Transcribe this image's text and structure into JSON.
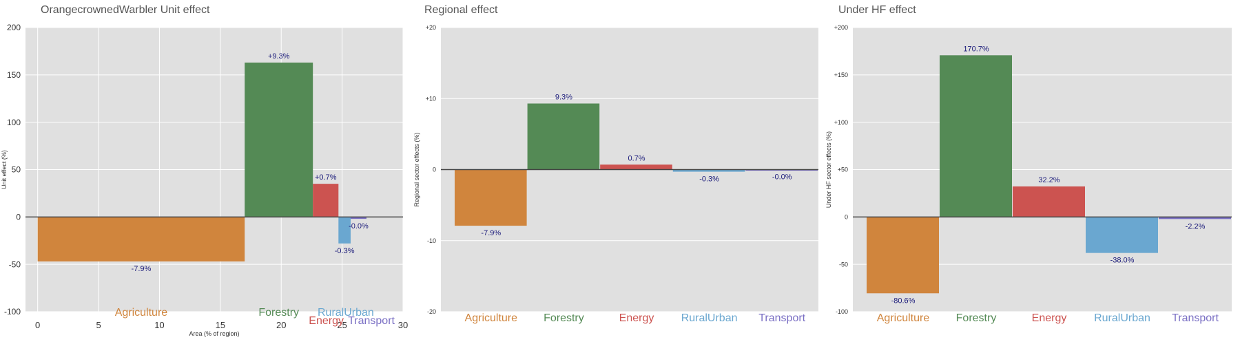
{
  "colors": {
    "panel_bg": "#e0e0e0",
    "grid": "#ffffff",
    "title": "#555555",
    "axis_text": "#333333",
    "value_label": "#1a1a7a",
    "zero_line": "#444444",
    "sectors": {
      "Agriculture": "#d0853d",
      "Forestry": "#548a55",
      "Energy": "#cc5350",
      "RuralUrban": "#6aa7d0",
      "Transport": "#7a6fc4"
    }
  },
  "chart_data": [
    {
      "type": "bar",
      "variant": "variable-width",
      "title": "OrangecrownedWarbler Unit effect",
      "xlabel": "Area (% of region)",
      "ylabel": "Unit effect (%)",
      "ylim": [
        -100,
        200
      ],
      "yticks": [
        -100,
        -50,
        0,
        50,
        100,
        150,
        200
      ],
      "ytick_labels": [
        "-100",
        "-50",
        "0",
        "50",
        "100",
        "150",
        "200"
      ],
      "xlim": [
        -1,
        30
      ],
      "xticks": [
        0,
        5,
        10,
        15,
        20,
        25,
        30
      ],
      "xtick_labels": [
        "0",
        "5",
        "10",
        "15",
        "20",
        "25",
        "30"
      ],
      "grid": true,
      "bars": [
        {
          "category": "Agriculture",
          "x_start": 0,
          "x_end": 17,
          "value": -47,
          "label": "-7.9%"
        },
        {
          "category": "Forestry",
          "x_start": 17,
          "x_end": 22.6,
          "value": 163,
          "label": "+9.3%"
        },
        {
          "category": "Energy",
          "x_start": 22.6,
          "x_end": 24.7,
          "value": 35,
          "label": "+0.7%"
        },
        {
          "category": "RuralUrban",
          "x_start": 24.7,
          "x_end": 25.7,
          "value": -28,
          "label": "-0.3%"
        },
        {
          "category": "Transport",
          "x_start": 25.7,
          "x_end": 27.0,
          "value": -2,
          "label": "-0.0%"
        }
      ],
      "category_labels": [
        {
          "text": "Agriculture",
          "x": 8.5
        },
        {
          "text": "Forestry",
          "x": 19.8
        },
        {
          "text": "Energy",
          "x": 23.7
        },
        {
          "text": "RuralUrban",
          "x": 25.3
        },
        {
          "text": "Transport",
          "x": 27.4
        }
      ]
    },
    {
      "type": "bar",
      "title": "Regional effect",
      "xlabel": "",
      "ylabel": "Regional sector effects (%)",
      "ylim": [
        -20,
        20
      ],
      "yticks": [
        -20,
        -10,
        0,
        10,
        20
      ],
      "ytick_labels": [
        "-20",
        "-10",
        "0",
        "+10",
        "+20"
      ],
      "grid": true,
      "categories": [
        "Agriculture",
        "Forestry",
        "Energy",
        "RuralUrban",
        "Transport"
      ],
      "values": [
        -7.9,
        9.3,
        0.7,
        -0.3,
        -0.02
      ],
      "labels": [
        "-7.9%",
        "9.3%",
        "0.7%",
        "-0.3%",
        "-0.0%"
      ]
    },
    {
      "type": "bar",
      "title": "Under HF effect",
      "xlabel": "",
      "ylabel": "Under HF sector effects (%)",
      "ylim": [
        -100,
        200
      ],
      "yticks": [
        -100,
        -50,
        0,
        50,
        100,
        150,
        200
      ],
      "ytick_labels": [
        "-100",
        "-50",
        "0",
        "+50",
        "+100",
        "+150",
        "+200"
      ],
      "grid": true,
      "categories": [
        "Agriculture",
        "Forestry",
        "Energy",
        "RuralUrban",
        "Transport"
      ],
      "values": [
        -80.6,
        170.7,
        32.2,
        -38.0,
        -2.2
      ],
      "labels": [
        "-80.6%",
        "170.7%",
        "32.2%",
        "-38.0%",
        "-2.2%"
      ]
    }
  ]
}
